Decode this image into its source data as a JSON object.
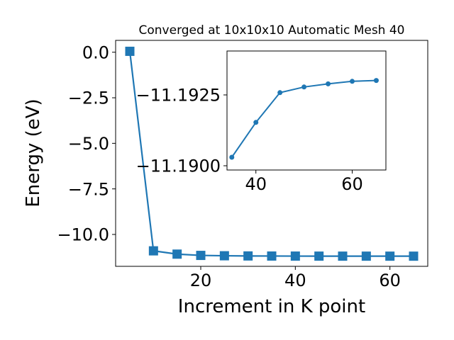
{
  "chart_data": [
    {
      "type": "line",
      "title": "Converged at 10x10x10 Automatic Mesh 40",
      "xlabel": "Increment in K point",
      "ylabel": "Energy (eV)",
      "xlim": [
        2,
        68
      ],
      "ylim": [
        -11.75,
        0.65
      ],
      "x_ticks": [
        20,
        40,
        60
      ],
      "x_tick_labels": [
        "20",
        "40",
        "60"
      ],
      "y_ticks": [
        0.0,
        -2.5,
        -5.0,
        -7.5,
        -10.0
      ],
      "y_tick_labels": [
        "0.0",
        "−2.5",
        "−5.0",
        "−7.5",
        "−10.0"
      ],
      "grid": false,
      "marker": "square",
      "color": "#1f77b4",
      "series": [
        {
          "x": [
            5,
            10,
            15,
            20,
            25,
            30,
            35,
            40,
            45,
            50,
            55,
            60,
            65
          ],
          "y": [
            0.05,
            -10.9,
            -11.08,
            -11.15,
            -11.17,
            -11.18,
            -11.185,
            -11.188,
            -11.19,
            -11.191,
            -11.1915,
            -11.192,
            -11.1922
          ]
        }
      ]
    },
    {
      "type": "line",
      "title": "",
      "xlabel": "",
      "ylabel": "",
      "xlim": [
        34,
        67
      ],
      "ylim": [
        -11.18985,
        -11.19405
      ],
      "x_ticks": [
        40,
        60
      ],
      "x_tick_labels": [
        "40",
        "60"
      ],
      "y_ticks": [
        -11.1925,
        -11.19
      ],
      "y_tick_labels": [
        "−11.1925",
        "−11.1900"
      ],
      "grid": false,
      "marker": "circle",
      "color": "#1f77b4",
      "series": [
        {
          "x": [
            35,
            40,
            45,
            50,
            55,
            60,
            65
          ],
          "y": [
            -11.1903,
            -11.19153,
            -11.19258,
            -11.19278,
            -11.19289,
            -11.19298,
            -11.19301
          ]
        }
      ]
    }
  ]
}
